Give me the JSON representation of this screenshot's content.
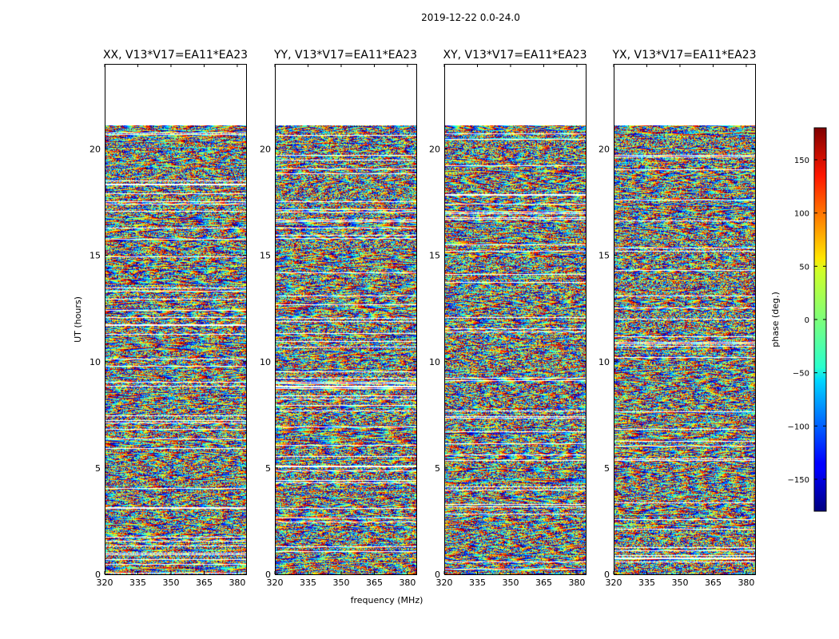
{
  "chart_data": {
    "type": "heatmap",
    "suptitle": "2019-12-22 0.0-24.0",
    "xlabel": "frequency (MHz)",
    "ylabel": "UT (hours)",
    "xticks": [
      320,
      335,
      350,
      365,
      380
    ],
    "xlim": [
      320,
      384
    ],
    "yticks": [
      0,
      5,
      10,
      15,
      20
    ],
    "ylim": [
      0,
      24
    ],
    "data_extent_hours": [
      0,
      21.1
    ],
    "colorbar": {
      "label": "phase (deg.)",
      "ticks": [
        150,
        100,
        50,
        0,
        -50,
        -100,
        -150
      ],
      "tick_labels": [
        "150",
        "100",
        "50",
        "0",
        "−50",
        "−100",
        "−150"
      ],
      "range": [
        -180,
        180
      ],
      "colormap": "jet"
    },
    "panels": [
      {
        "title": "XX, V13*V17=EA11*EA23",
        "seed": 11
      },
      {
        "title": "YY, V13*V17=EA11*EA23",
        "seed": 23
      },
      {
        "title": "XY, V13*V17=EA11*EA23",
        "seed": 37
      },
      {
        "title": "YX, V13*V17=EA11*EA23",
        "seed": 53
      }
    ]
  }
}
